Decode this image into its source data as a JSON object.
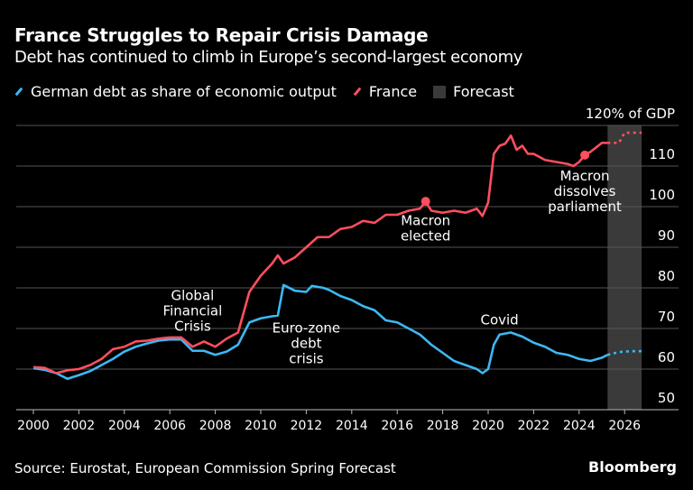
{
  "header": {
    "title": "France Struggles to Repair Crisis Damage",
    "subtitle": "Debt has continued to climb in Europe’s second-largest economy"
  },
  "footer": {
    "source": "Source: Eurostat, European Commission Spring Forecast",
    "brand": "Bloomberg"
  },
  "chart_data": {
    "type": "line",
    "title": "France Struggles to Repair Crisis Damage",
    "subtitle": "Debt has continued to climb in Europe’s second-largest economy",
    "ylabel": "120% of GDP",
    "xlim": [
      2000,
      2027
    ],
    "ylim": [
      50,
      120
    ],
    "yticks": [
      50,
      60,
      70,
      80,
      90,
      100,
      110
    ],
    "ytick_labels": [
      "50",
      "60",
      "70",
      "80",
      "90",
      "100",
      "110"
    ],
    "xticks": [
      2000,
      2002,
      2004,
      2006,
      2008,
      2010,
      2012,
      2014,
      2016,
      2018,
      2020,
      2022,
      2024,
      2026
    ],
    "xtick_labels": [
      "2000",
      "2002",
      "2004",
      "2006",
      "2008",
      "2010",
      "2012",
      "2014",
      "2016",
      "2018",
      "2020",
      "2022",
      "2024",
      "2026"
    ],
    "grid": true,
    "legend_position": "top-left",
    "forecast_range": [
      2025.25,
      2026.75
    ],
    "legend": [
      {
        "label": "German debt as share of economic output",
        "color": "#3db8f5",
        "kind": "line"
      },
      {
        "label": "France",
        "color": "#ff4f5e",
        "kind": "line"
      },
      {
        "label": "Forecast",
        "color": "#3a3a3a",
        "kind": "box"
      }
    ],
    "series": [
      {
        "name": "German debt as share of economic output",
        "color": "#3db8f5",
        "x": [
          2000,
          2000.5,
          2001,
          2001.5,
          2002,
          2002.5,
          2003,
          2003.5,
          2004,
          2004.5,
          2005,
          2005.5,
          2006,
          2006.5,
          2007,
          2007.5,
          2008,
          2008.5,
          2009,
          2009.5,
          2010,
          2010.5,
          2010.75,
          2011,
          2011.5,
          2012,
          2012.25,
          2012.75,
          2013,
          2013.5,
          2014,
          2014.5,
          2015,
          2015.5,
          2016,
          2016.5,
          2017,
          2017.5,
          2018,
          2018.5,
          2019,
          2019.5,
          2019.75,
          2020,
          2020.25,
          2020.5,
          2021,
          2021.5,
          2022,
          2022.5,
          2023,
          2023.5,
          2024,
          2024.5,
          2025,
          2025.25
        ],
        "y": [
          60.2,
          59.8,
          59.0,
          57.6,
          58.5,
          59.5,
          61.0,
          62.5,
          64.3,
          65.5,
          66.3,
          67.0,
          67.3,
          67.3,
          64.5,
          64.5,
          63.5,
          64.3,
          66.0,
          71.5,
          72.5,
          73.0,
          73.2,
          80.7,
          79.3,
          79.0,
          80.5,
          80.0,
          79.5,
          78.0,
          77.0,
          75.5,
          74.5,
          72.0,
          71.5,
          70.0,
          68.5,
          66.0,
          64.0,
          62.0,
          61.0,
          60.0,
          59.0,
          60.0,
          66.0,
          68.5,
          69.0,
          68.0,
          66.5,
          65.5,
          64.0,
          63.5,
          62.5,
          62.0,
          62.8,
          63.5
        ],
        "forecast_x": [
          2025.25,
          2025.75,
          2026.25,
          2026.75
        ],
        "forecast_y": [
          63.5,
          64.2,
          64.4,
          64.4
        ]
      },
      {
        "name": "France",
        "color": "#ff4f5e",
        "x": [
          2000,
          2000.5,
          2001,
          2001.5,
          2002,
          2002.5,
          2003,
          2003.5,
          2004,
          2004.5,
          2005,
          2005.5,
          2006,
          2006.5,
          2007,
          2007.5,
          2008,
          2008.5,
          2009,
          2009.5,
          2010,
          2010.5,
          2010.75,
          2011,
          2011.5,
          2012,
          2012.5,
          2013,
          2013.5,
          2014,
          2014.5,
          2015,
          2015.5,
          2016,
          2016.5,
          2017,
          2017.25,
          2017.5,
          2018,
          2018.5,
          2019,
          2019.5,
          2019.75,
          2020,
          2020.25,
          2020.5,
          2020.75,
          2021,
          2021.25,
          2021.5,
          2021.75,
          2022,
          2022.5,
          2023,
          2023.5,
          2023.75,
          2024,
          2024.25,
          2024.5,
          2025,
          2025.25
        ],
        "y": [
          60.5,
          60.3,
          59.0,
          59.7,
          60.0,
          61.0,
          62.5,
          64.9,
          65.5,
          66.8,
          67.0,
          67.5,
          67.8,
          67.8,
          65.5,
          66.8,
          65.5,
          67.5,
          69.0,
          79.0,
          83.0,
          86.0,
          88.0,
          86.0,
          87.5,
          90.0,
          92.5,
          92.5,
          94.5,
          95.0,
          96.5,
          96.0,
          98.0,
          98.0,
          99.0,
          99.5,
          101.3,
          99.0,
          98.5,
          99.0,
          98.5,
          99.5,
          97.7,
          101.0,
          113.0,
          115.0,
          115.5,
          117.5,
          114.0,
          115.0,
          113.0,
          113.0,
          111.5,
          111.0,
          110.5,
          110.0,
          111.0,
          112.7,
          113.5,
          115.7,
          115.7
        ],
        "forecast_x": [
          2025.25,
          2025.75,
          2026.0,
          2026.75
        ],
        "forecast_y": [
          115.7,
          115.7,
          118.2,
          118.2
        ]
      }
    ],
    "markers": [
      {
        "series": "France",
        "x": 2017.25,
        "y": 101.3
      },
      {
        "series": "France",
        "x": 2024.25,
        "y": 112.7
      }
    ],
    "annotations": [
      {
        "text": [
          "Global",
          "Financial",
          "Crisis"
        ],
        "x": 2007,
        "y": 77
      },
      {
        "text": [
          "Euro-zone",
          "debt",
          "crisis"
        ],
        "x": 2012,
        "y": 69
      },
      {
        "text": [
          "Macron",
          "elected"
        ],
        "x": 2017.25,
        "y": 95.5
      },
      {
        "text": [
          "Covid"
        ],
        "x": 2020.5,
        "y": 71
      },
      {
        "text": [
          "Macron",
          "dissolves",
          "parliament"
        ],
        "x": 2024.25,
        "y": 106.5
      }
    ]
  }
}
